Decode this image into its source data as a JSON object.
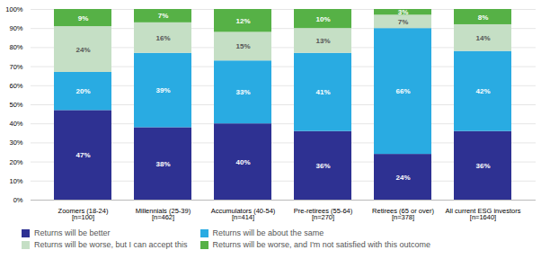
{
  "chart_data": {
    "type": "bar",
    "stacked": true,
    "categories": [
      "Zoomers (18-24)\n[n=100]",
      "Millennials (25-39)\n[n=462]",
      "Accumulators (40-54)\n[n=414]",
      "Pre-retirees (55-64)\n[n=270]",
      "Retirees (65 or over)\n[n=378]",
      "All current ESG investors\n[n=1640]"
    ],
    "series": [
      {
        "name": "Returns will be better",
        "color": "#2e3192",
        "values": [
          47,
          38,
          40,
          36,
          24,
          36
        ],
        "value_labels": [
          "47%",
          "38%",
          "40%",
          "36%",
          "24%",
          "36%"
        ]
      },
      {
        "name": "Returns will be about the same",
        "color": "#29abe2",
        "values": [
          20,
          39,
          33,
          41,
          66,
          42
        ],
        "value_labels": [
          "20%",
          "39%",
          "33%",
          "41%",
          "66%",
          "42%"
        ]
      },
      {
        "name": "Returns will be worse, but I can accept this",
        "color": "#c5dfc5",
        "values": [
          24,
          16,
          15,
          13,
          7,
          14
        ],
        "value_labels": [
          "24%",
          "16%",
          "15%",
          "13%",
          "7%",
          "14%"
        ]
      },
      {
        "name": "Returns will be worse, and I'm not satisfied with this outcome",
        "color": "#56b146",
        "values": [
          9,
          7,
          12,
          10,
          3,
          8
        ],
        "value_labels": [
          "9%",
          "7%",
          "12%",
          "10%",
          "3%",
          "8%"
        ]
      }
    ],
    "ylim": [
      0,
      100
    ],
    "yticks": [
      {
        "value": 0,
        "label": "0%"
      },
      {
        "value": 10,
        "label": "10%"
      },
      {
        "value": 20,
        "label": "20%"
      },
      {
        "value": 30,
        "label": "30%"
      },
      {
        "value": 40,
        "label": "40%"
      },
      {
        "value": 50,
        "label": "50%"
      },
      {
        "value": 60,
        "label": "60%"
      },
      {
        "value": 70,
        "label": "70%"
      },
      {
        "value": 80,
        "label": "80%"
      },
      {
        "value": 90,
        "label": "90%"
      },
      {
        "value": 100,
        "label": "100%"
      }
    ],
    "grid": true,
    "data_labels": true,
    "legend": "bottom"
  }
}
